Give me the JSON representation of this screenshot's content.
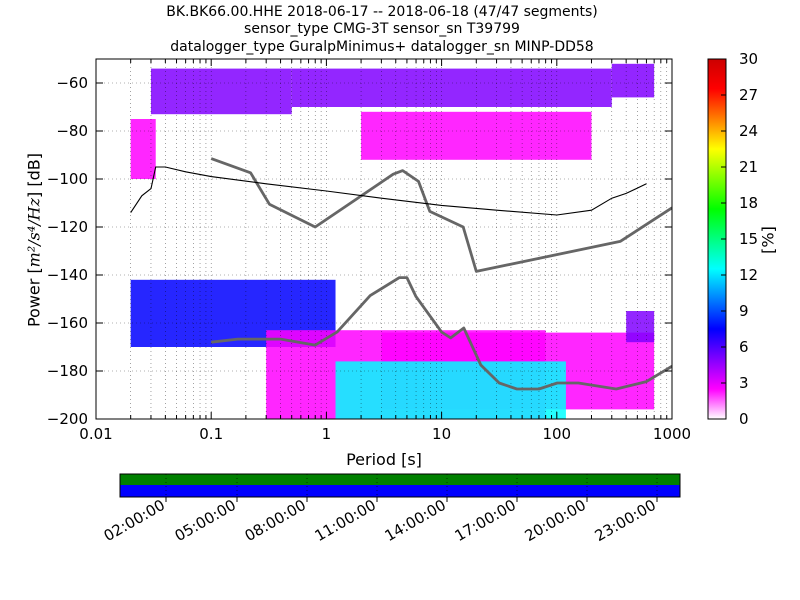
{
  "title": {
    "line1": "BK.BK66.00.HHE   2018-06-17 -- 2018-06-18  (47/47 segments)",
    "line2": "sensor_type CMG-3T sensor_sn T39799",
    "line3": "datalogger_type GuralpMinimus+ datalogger_sn MINP-DD58"
  },
  "ylabel": {
    "prefix": "Power [",
    "unit": "m²/s⁴/Hz",
    "suffix": "] [dB]"
  },
  "colorbar": {
    "label": "[%]",
    "ticks": [
      "0",
      "3",
      "6",
      "9",
      "12",
      "15",
      "18",
      "21",
      "24",
      "27",
      "30"
    ],
    "range": [
      0,
      30
    ],
    "colors": [
      "#ffffff",
      "#ff00ff",
      "#8000ff",
      "#0000ff",
      "#0080ff",
      "#00ffff",
      "#00ff80",
      "#00ff00",
      "#80ff00",
      "#ffff00",
      "#ff8000",
      "#ff0000",
      "#cc0000"
    ]
  },
  "chart_data": [
    {
      "type": "heatmap",
      "title": "BK.BK66.00.HHE   2018-06-17 -- 2018-06-18  (47/47 segments)",
      "xlabel": "Period [s]",
      "ylabel": "Power [m^2/s^4/Hz] [dB]",
      "xscale": "log",
      "xlim": [
        0.01,
        1000
      ],
      "ylim": [
        -200,
        -50
      ],
      "xticks": [
        0.01,
        0.1,
        1,
        10,
        100,
        1000
      ],
      "xtick_labels": [
        "0.01",
        "0.1",
        "1",
        "10",
        "100",
        "1000"
      ],
      "yticks": [
        -200,
        -180,
        -160,
        -140,
        -120,
        -100,
        -80,
        -60
      ],
      "ytick_labels": [
        "−200",
        "−180",
        "−160",
        "−140",
        "−120",
        "−100",
        "−80",
        "−60"
      ],
      "grid": true,
      "noise_models": [
        {
          "name": "NHNM",
          "x": [
            0.1,
            0.22,
            0.32,
            0.8,
            3.8,
            4.6,
            6.3,
            7.9,
            15.4,
            20,
            354.8,
            1000
          ],
          "y": [
            -91.5,
            -97.4,
            -110.5,
            -120,
            -98,
            -96.5,
            -101,
            -113.5,
            -120,
            -138.5,
            -126,
            -112
          ]
        },
        {
          "name": "NLNM",
          "x": [
            0.1,
            0.17,
            0.4,
            0.8,
            1.24,
            2.4,
            4.3,
            5,
            6,
            10,
            12,
            15.6,
            21.9,
            31.6,
            45,
            70,
            101,
            154,
            328,
            600,
            1000
          ],
          "y": [
            -168,
            -166.7,
            -166.7,
            -169.2,
            -163.7,
            -148.6,
            -141.1,
            -141.1,
            -149,
            -163.8,
            -166.2,
            -162.1,
            -177.5,
            -185,
            -187.5,
            -187.5,
            -185,
            -185,
            -187.5,
            -184.4,
            -178
          ]
        }
      ],
      "mode_curve": {
        "x": [
          0.02,
          0.025,
          0.03,
          0.033,
          0.04,
          0.06,
          0.1,
          0.3,
          1,
          3,
          10,
          30,
          100,
          200,
          300,
          400,
          600
        ],
        "y": [
          -114,
          -107,
          -104,
          -95,
          -95,
          -97,
          -99,
          -102,
          -105,
          -108,
          -111,
          -113,
          -115,
          -113,
          -108,
          -106,
          -102
        ]
      },
      "density_bands": [
        {
          "x0": 0.02,
          "x1": 0.033,
          "y0": -100,
          "y1": -75,
          "pct": 3
        },
        {
          "x0": 0.03,
          "x1": 0.5,
          "y0": -73,
          "y1": -54,
          "pct": 5
        },
        {
          "x0": 0.5,
          "x1": 300,
          "y0": -70,
          "y1": -54,
          "pct": 5
        },
        {
          "x0": 300,
          "x1": 700,
          "y0": -66,
          "y1": -52,
          "pct": 6
        },
        {
          "x0": 2,
          "x1": 200,
          "y0": -92,
          "y1": -72,
          "pct": 2
        },
        {
          "x0": 0.02,
          "x1": 1.2,
          "y0": -170,
          "y1": -142,
          "pct": 8
        },
        {
          "x0": 0.3,
          "x1": 80,
          "y0": -200,
          "y1": -163,
          "pct": 3
        },
        {
          "x0": 3,
          "x1": 700,
          "y0": -196,
          "y1": -164,
          "pct": 2
        },
        {
          "x0": 1.2,
          "x1": 120,
          "y0": -200,
          "y1": -176,
          "pct": 12
        },
        {
          "x0": 400,
          "x1": 700,
          "y0": -168,
          "y1": -155,
          "pct": 4
        }
      ]
    }
  ],
  "timeline": {
    "tick_labels": [
      "02:00:00",
      "05:00:00",
      "08:00:00",
      "11:00:00",
      "14:00:00",
      "17:00:00",
      "20:00:00",
      "23:00:00"
    ],
    "top_color": "#008000",
    "bottom_color": "#0000ff"
  }
}
